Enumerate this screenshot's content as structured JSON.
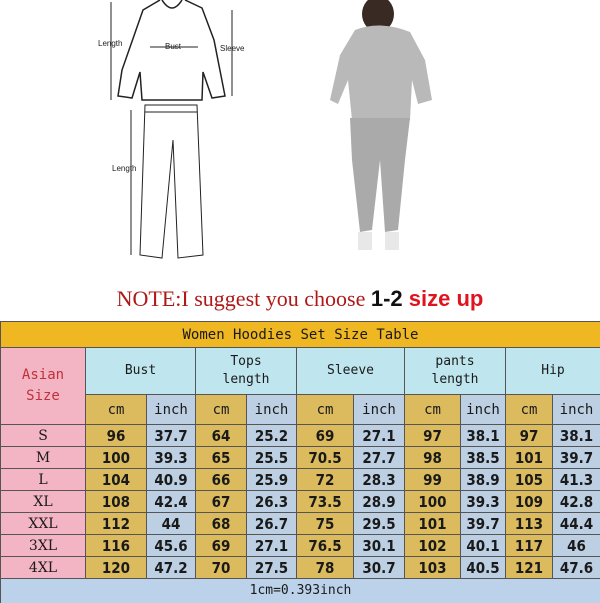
{
  "diagram": {
    "top_length": "Length",
    "bust": "Bust",
    "sleeve": "Sleeve",
    "pants_length": "Length"
  },
  "note": {
    "part1": "NOTE:I suggest  you choose ",
    "part2": "1-2 ",
    "part3": "size up"
  },
  "colors": {
    "title_bg": "#efb721",
    "header_bg": "#bfe6ee",
    "size_bg": "#f3b5c4",
    "cm_bg": "#dcbb5e",
    "inch_bg": "#bccfe3",
    "note_red": "#e0141e"
  },
  "table": {
    "title": "Women Hoodies Set Size Table",
    "size_header_1": "Asian",
    "size_header_2": "Size",
    "groups": [
      {
        "l1": "Bust",
        "l2": ""
      },
      {
        "l1": "Tops",
        "l2": "length"
      },
      {
        "l1": "Sleeve",
        "l2": ""
      },
      {
        "l1": "pants",
        "l2": "length"
      },
      {
        "l1": "Hip",
        "l2": ""
      }
    ],
    "unit_cm": "cm",
    "unit_inch": "inch",
    "rows": [
      {
        "size": "S",
        "v": [
          "96",
          "37.7",
          "64",
          "25.2",
          "69",
          "27.1",
          "97",
          "38.1",
          "97",
          "38.1"
        ]
      },
      {
        "size": "M",
        "v": [
          "100",
          "39.3",
          "65",
          "25.5",
          "70.5",
          "27.7",
          "98",
          "38.5",
          "101",
          "39.7"
        ]
      },
      {
        "size": "L",
        "v": [
          "104",
          "40.9",
          "66",
          "25.9",
          "72",
          "28.3",
          "99",
          "38.9",
          "105",
          "41.3"
        ]
      },
      {
        "size": "XL",
        "v": [
          "108",
          "42.4",
          "67",
          "26.3",
          "73.5",
          "28.9",
          "100",
          "39.3",
          "109",
          "42.8"
        ]
      },
      {
        "size": "XXL",
        "v": [
          "112",
          "44",
          "68",
          "26.7",
          "75",
          "29.5",
          "101",
          "39.7",
          "113",
          "44.4"
        ]
      },
      {
        "size": "3XL",
        "v": [
          "116",
          "45.6",
          "69",
          "27.1",
          "76.5",
          "30.1",
          "102",
          "40.1",
          "117",
          "46"
        ]
      },
      {
        "size": "4XL",
        "v": [
          "120",
          "47.2",
          "70",
          "27.5",
          "78",
          "30.7",
          "103",
          "40.5",
          "121",
          "47.6"
        ]
      }
    ],
    "footer": "1cm=0.393inch"
  }
}
